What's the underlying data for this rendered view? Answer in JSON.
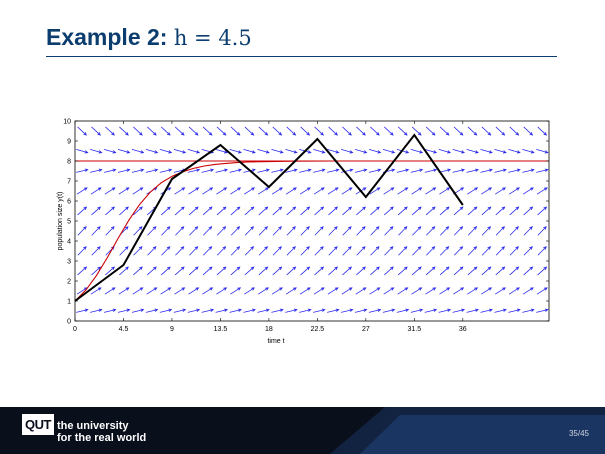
{
  "slide": {
    "title_prefix": "Example 2:",
    "title_math": "h = 4.5",
    "page": "35/45"
  },
  "footer": {
    "logo": "QUT",
    "tagline_line1": "the university",
    "tagline_line2": "for the real world"
  },
  "chart_data": {
    "type": "line",
    "xlabel": "time t",
    "ylabel": "population size y(t)",
    "xlim": [
      0,
      44
    ],
    "ylim": [
      0,
      10
    ],
    "xticks": [
      0,
      4.5,
      9,
      13.5,
      18,
      22.5,
      27,
      31.5,
      36
    ],
    "xtick_labels": [
      "0",
      "4.5",
      "9",
      "13.5",
      "18",
      "22.5",
      "27",
      "31.5",
      "36"
    ],
    "yticks": [
      0,
      1,
      2,
      3,
      4,
      5,
      6,
      7,
      8,
      9,
      10
    ],
    "ytick_labels": [
      "0",
      "1",
      "2",
      "3",
      "4",
      "5",
      "6",
      "7",
      "8",
      "9",
      "10"
    ],
    "grid": false,
    "direction_field": {
      "color": "#2a2aee",
      "equilibrium_y": 8
    },
    "series": [
      {
        "color": "#000000",
        "x": [
          0,
          4.5,
          9,
          13.5,
          18,
          22.5,
          27,
          31.5,
          36
        ],
        "y": [
          1,
          2.8,
          7.1,
          8.8,
          6.7,
          9.1,
          6.2,
          9.3,
          5.8
        ]
      },
      {
        "color": "#cc0000",
        "x": [
          0,
          1,
          2,
          3,
          4,
          5,
          6,
          7,
          8,
          9,
          10,
          11,
          12,
          13,
          14,
          15,
          16,
          18,
          20,
          24,
          28,
          32,
          36,
          40,
          44
        ],
        "y": [
          1,
          1.54,
          2.28,
          3.17,
          4.13,
          5.04,
          5.83,
          6.45,
          6.91,
          7.23,
          7.46,
          7.63,
          7.75,
          7.83,
          7.88,
          7.92,
          7.95,
          7.97,
          7.99,
          8,
          8,
          8,
          8,
          8,
          8
        ]
      },
      {
        "color": "#cc0000",
        "x": [
          0,
          44
        ],
        "y": [
          8,
          8
        ]
      }
    ]
  }
}
